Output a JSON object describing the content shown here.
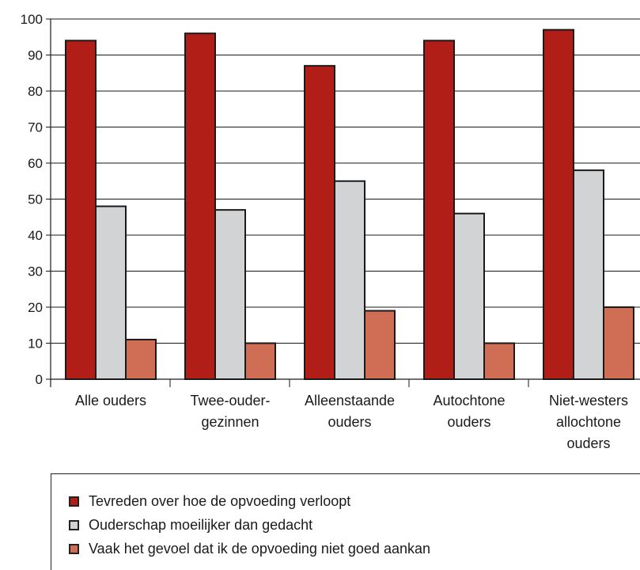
{
  "chart_data": {
    "type": "bar",
    "categories": [
      [
        "Alle ouders"
      ],
      [
        "Twee-ouder-",
        "gezinnen"
      ],
      [
        "Alleenstaande",
        "ouders"
      ],
      [
        "Autochtone",
        "ouders"
      ],
      [
        "Niet-westers",
        "allochtone",
        "ouders"
      ]
    ],
    "series": [
      {
        "name": "Tevreden over hoe de opvoeding verloopt",
        "color": "#b11e18",
        "values": [
          94,
          96,
          87,
          94,
          97
        ]
      },
      {
        "name": "Ouderschap moeilijker dan gedacht",
        "color": "#d2d3d5",
        "values": [
          48,
          47,
          55,
          46,
          58
        ]
      },
      {
        "name": "Vaak het gevoel dat ik de opvoeding niet goed aankan",
        "color": "#cf6e55",
        "values": [
          11,
          10,
          19,
          10,
          20
        ]
      }
    ],
    "ylim": [
      0,
      100
    ],
    "yticks": [
      "0",
      "10",
      "20",
      "30",
      "40",
      "50",
      "60",
      "70",
      "80",
      "90",
      "100"
    ],
    "grid": true,
    "legend_position": "bottom"
  }
}
